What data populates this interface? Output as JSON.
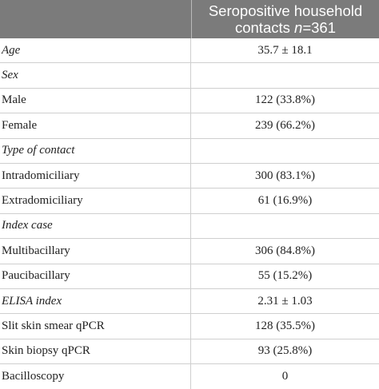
{
  "header": {
    "col2_line1": "Seropositive household",
    "col2_line2_prefix": "contacts ",
    "col2_line2_n": "n",
    "col2_line2_suffix": "=361"
  },
  "rows": [
    {
      "label": "Age",
      "value": "35.7 ± 18.1",
      "italic": true
    },
    {
      "label": "Sex",
      "value": "",
      "italic": true
    },
    {
      "label": "Male",
      "value": "122 (33.8%)",
      "italic": false
    },
    {
      "label": "Female",
      "value": "239 (66.2%)",
      "italic": false
    },
    {
      "label": "Type of contact",
      "value": "",
      "italic": true
    },
    {
      "label": "Intradomiciliary",
      "value": "300 (83.1%)",
      "italic": false
    },
    {
      "label": "Extradomiciliary",
      "value": "61 (16.9%)",
      "italic": false
    },
    {
      "label": "Index case",
      "value": "",
      "italic": true
    },
    {
      "label": "Multibacillary",
      "value": "306 (84.8%)",
      "italic": false
    },
    {
      "label": "Paucibacillary",
      "value": "55 (15.2%)",
      "italic": false
    },
    {
      "label": "ELISA index",
      "value": "2.31 ± 1.03",
      "italic": true
    },
    {
      "label": "Slit skin smear qPCR",
      "value": "128 (35.5%)",
      "italic": false
    },
    {
      "label": "Skin biopsy qPCR",
      "value": "93 (25.8%)",
      "italic": false
    },
    {
      "label": "Bacilloscopy",
      "value": "0",
      "italic": false
    }
  ]
}
